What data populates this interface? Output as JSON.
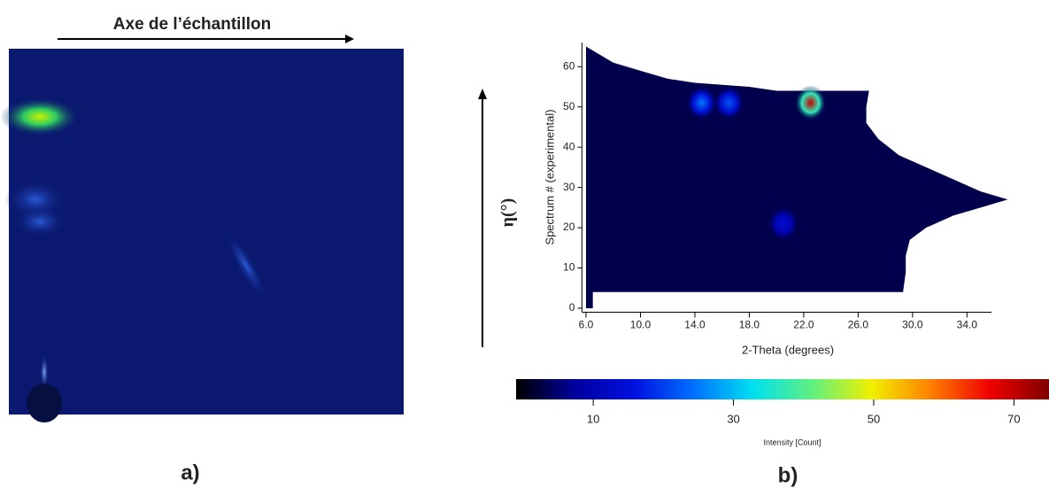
{
  "header": {
    "title": "Axe de l’échantillon"
  },
  "panel_labels": [
    "a)",
    "b)"
  ],
  "side_label": "η(°)",
  "chart_data": {
    "type": "heatmap",
    "xlabel": "2-Theta (degrees)",
    "ylabel": "Spectrum # (experimental)",
    "xlim": [
      5.7,
      35.8
    ],
    "ylim": [
      -1,
      66
    ],
    "xticks": [
      {
        "value": 6,
        "label": "6.0"
      },
      {
        "value": 10,
        "label": "10.0"
      },
      {
        "value": 14,
        "label": "14.0"
      },
      {
        "value": 18,
        "label": "18.0"
      },
      {
        "value": 22,
        "label": "22.0"
      },
      {
        "value": 26,
        "label": "26.0"
      },
      {
        "value": 30,
        "label": "30.0"
      },
      {
        "value": 34,
        "label": "34.0"
      }
    ],
    "yticks": [
      0,
      10,
      20,
      30,
      40,
      50,
      60
    ],
    "spots": [
      {
        "x": 14.5,
        "y": 51,
        "value": 25
      },
      {
        "x": 16.5,
        "y": 51,
        "value": 22
      },
      {
        "x": 22.5,
        "y": 51,
        "value": 70
      },
      {
        "x": 20.5,
        "y": 21,
        "value": 14
      }
    ],
    "colorbar": {
      "label": "Intensity [Count]",
      "lim": [
        -1,
        75
      ],
      "ticks": [
        10,
        30,
        50,
        70
      ],
      "colors": [
        "#000000",
        "#0000a0",
        "#0010e0",
        "#0070ff",
        "#00e0f0",
        "#60f080",
        "#f0f000",
        "#ff8000",
        "#f00000",
        "#800000"
      ]
    }
  }
}
